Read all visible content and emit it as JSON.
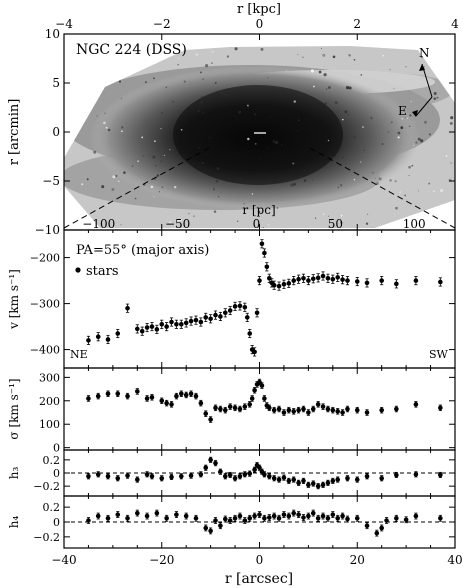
{
  "chart_data": [
    {
      "type": "heatmap",
      "panel": "image",
      "annotation": "NGC 224 (DSS)",
      "xlabel_top": "r [kpc]",
      "ylabel": "r [arcmin]",
      "xlim": [
        -4,
        4
      ],
      "ylim": [
        -10,
        10
      ],
      "top_ticks": [
        "−4",
        "−2",
        "0",
        "2",
        "4"
      ],
      "top_tick_values": [
        -4,
        -2,
        0,
        2,
        4
      ],
      "y_ticks": [
        "10",
        "5",
        "0",
        "−5",
        "−10"
      ],
      "y_tick_values": [
        10,
        5,
        0,
        -5,
        -10
      ],
      "compass": {
        "north": "N",
        "east": "E"
      },
      "inset_axis": {
        "label": "r [pc]",
        "ticks": [
          "−100",
          "−50",
          "0",
          "50",
          "100"
        ],
        "tick_values": [
          -100,
          -50,
          0,
          50,
          100
        ]
      }
    },
    {
      "type": "scatter",
      "panel": "velocity",
      "annotation": "PA=55° (major axis)",
      "legend": "stars",
      "left_label": "NE",
      "right_label": "SW",
      "ylabel": "v [km s⁻¹]",
      "ylim": [
        -440,
        -140
      ],
      "y_ticks": [
        "−200",
        "−300",
        "−400"
      ],
      "y_tick_values": [
        -200,
        -300,
        -400
      ],
      "series": [
        {
          "name": "stars",
          "x": [
            -35,
            -33,
            -31,
            -29,
            -27,
            -25,
            -24,
            -23,
            -22,
            -21,
            -20,
            -19,
            -18,
            -17,
            -16,
            -15,
            -14,
            -13,
            -12,
            -11,
            -10,
            -9,
            -8,
            -7,
            -6,
            -5,
            -4,
            -3,
            -2.5,
            -2,
            -1.5,
            -1,
            -0.5,
            0,
            0.5,
            1,
            1.5,
            2,
            2.5,
            3,
            4,
            5,
            6,
            7,
            8,
            9,
            10,
            11,
            12,
            13,
            14,
            15,
            16,
            17,
            18,
            20,
            22,
            25,
            28,
            32,
            37
          ],
          "y": [
            -380,
            -372,
            -378,
            -365,
            -310,
            -355,
            -360,
            -352,
            -350,
            -356,
            -345,
            -350,
            -340,
            -345,
            -345,
            -342,
            -338,
            -336,
            -340,
            -330,
            -333,
            -325,
            -328,
            -320,
            -315,
            -306,
            -305,
            -308,
            -330,
            -365,
            -400,
            -405,
            -320,
            -250,
            -170,
            -190,
            -220,
            -245,
            -255,
            -260,
            -262,
            -258,
            -256,
            -250,
            -247,
            -245,
            -250,
            -246,
            -244,
            -240,
            -245,
            -247,
            -243,
            -248,
            -250,
            -252,
            -255,
            -250,
            -257,
            -250,
            -253
          ]
        }
      ]
    },
    {
      "type": "scatter",
      "panel": "dispersion",
      "ylabel": "σ [km s⁻¹]",
      "ylim": [
        -10,
        340
      ],
      "y_ticks": [
        "300",
        "200",
        "100",
        "0"
      ],
      "y_tick_values": [
        300,
        200,
        100,
        0
      ],
      "series": [
        {
          "name": "",
          "x": [
            -35,
            -33,
            -31,
            -29,
            -27,
            -25,
            -23,
            -22,
            -20,
            -19,
            -18,
            -17,
            -16,
            -15,
            -14,
            -13,
            -12,
            -11,
            -10,
            -9,
            -8,
            -7,
            -6,
            -5,
            -4,
            -3,
            -2,
            -1.5,
            -1,
            -0.5,
            0,
            0.5,
            1,
            1.5,
            2,
            3,
            4,
            5,
            6,
            7,
            8,
            9,
            10,
            11,
            12,
            13,
            14,
            15,
            16,
            17,
            18,
            20,
            22,
            25,
            28,
            32,
            37
          ],
          "y": [
            210,
            220,
            230,
            230,
            220,
            240,
            210,
            215,
            200,
            190,
            185,
            220,
            230,
            225,
            230,
            220,
            190,
            145,
            120,
            170,
            165,
            160,
            175,
            170,
            165,
            175,
            185,
            210,
            245,
            270,
            280,
            265,
            210,
            180,
            170,
            160,
            165,
            150,
            160,
            155,
            160,
            165,
            150,
            165,
            185,
            175,
            165,
            160,
            155,
            150,
            165,
            160,
            150,
            160,
            165,
            185,
            170
          ]
        }
      ]
    },
    {
      "type": "scatter",
      "panel": "h3",
      "ylabel": "h₃",
      "ylim": [
        -0.35,
        0.35
      ],
      "y_ticks": [
        "0.2",
        "0",
        "−0.2"
      ],
      "y_tick_values": [
        0.2,
        0,
        -0.2
      ],
      "series": [
        {
          "name": "",
          "x": [
            -35,
            -33,
            -31,
            -29,
            -27,
            -25,
            -23,
            -22,
            -20,
            -18,
            -16,
            -14,
            -12,
            -11,
            -10,
            -9,
            -8,
            -7,
            -6,
            -5,
            -4,
            -3,
            -2,
            -1,
            -0.5,
            0,
            0.5,
            1,
            2,
            3,
            4,
            5,
            6,
            7,
            8,
            9,
            10,
            11,
            12,
            13,
            14,
            15,
            16,
            18,
            20,
            22,
            25,
            28,
            32,
            37
          ],
          "y": [
            -0.05,
            -0.02,
            -0.05,
            -0.08,
            -0.04,
            -0.1,
            -0.02,
            -0.05,
            -0.08,
            -0.06,
            -0.05,
            -0.04,
            -0.02,
            0.08,
            0.2,
            0.15,
            0.02,
            -0.05,
            -0.03,
            -0.08,
            -0.05,
            -0.02,
            -0.01,
            0.05,
            0.12,
            0.08,
            0.02,
            -0.02,
            -0.05,
            -0.08,
            -0.1,
            -0.07,
            -0.12,
            -0.1,
            -0.15,
            -0.12,
            -0.18,
            -0.16,
            -0.2,
            -0.18,
            -0.15,
            -0.12,
            -0.1,
            -0.08,
            -0.1,
            -0.05,
            -0.08,
            -0.03,
            -0.02,
            -0.03
          ]
        }
      ]
    },
    {
      "type": "scatter",
      "panel": "h4",
      "xlabel": "r [arcsec]",
      "ylabel": "h₄",
      "xlim": [
        -40,
        40
      ],
      "x_ticks": [
        "−40",
        "−20",
        "0",
        "20",
        "40"
      ],
      "x_tick_values": [
        -40,
        -20,
        0,
        20,
        40
      ],
      "ylim": [
        -0.35,
        0.35
      ],
      "y_ticks": [
        "0.2",
        "0",
        "−0.2"
      ],
      "y_tick_values": [
        0.2,
        0,
        -0.2
      ],
      "series": [
        {
          "name": "",
          "x": [
            -35,
            -33,
            -31,
            -29,
            -27,
            -25,
            -23,
            -21,
            -19,
            -17,
            -15,
            -13,
            -11,
            -10,
            -9,
            -8,
            -7,
            -6,
            -5,
            -4,
            -3,
            -2,
            -1,
            0,
            1,
            2,
            3,
            4,
            5,
            6,
            7,
            8,
            9,
            10,
            11,
            12,
            13,
            14,
            15,
            16,
            17,
            18,
            20,
            22,
            24,
            25,
            26,
            28,
            30,
            32,
            37
          ],
          "y": [
            0.02,
            0.08,
            0.05,
            0.1,
            0.05,
            0.12,
            0.08,
            0.12,
            0.05,
            0.1,
            0.08,
            0.05,
            -0.08,
            -0.12,
            0.02,
            -0.05,
            0.04,
            0.02,
            0.05,
            0.08,
            0.02,
            0.05,
            0.08,
            0.1,
            0.05,
            0.06,
            0.08,
            0.05,
            0.1,
            0.08,
            0.12,
            0.1,
            0.06,
            0.08,
            0.12,
            0.05,
            0.08,
            0.05,
            0.1,
            0.05,
            0.08,
            0.04,
            0.05,
            -0.05,
            -0.15,
            -0.08,
            0.02,
            0.05,
            0.03,
            0.08,
            0.05
          ]
        }
      ]
    }
  ]
}
